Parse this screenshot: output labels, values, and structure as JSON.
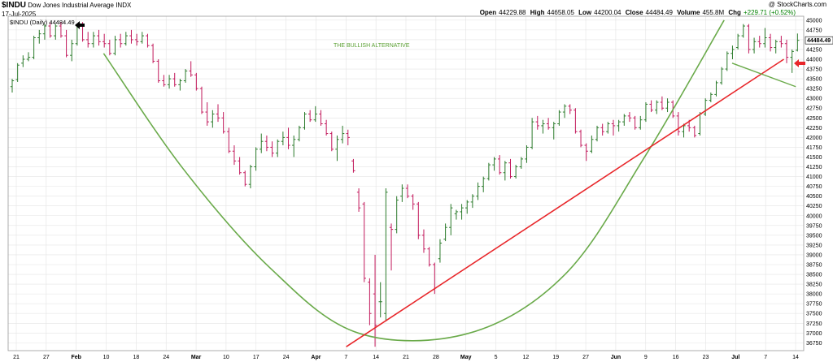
{
  "header": {
    "symbol": "$INDU",
    "name": "Dow Jones Industrial Average",
    "exchange": "INDX",
    "date": "17-Jul-2025",
    "credit": "@ StockCharts.com",
    "open_label": "Open",
    "open": "44229.88",
    "high_label": "High",
    "high": "44658.05",
    "low_label": "Low",
    "low": "44200.04",
    "close_label": "Close",
    "close": "44484.49",
    "volume_label": "Volume",
    "volume": "455.8M",
    "chg_label": "Chg",
    "chg": "+229.71 (+0.52%)"
  },
  "legend": {
    "text": "$INDU (Daily) 44484.49",
    "last_price_tag": "44484.49"
  },
  "colors": {
    "up_bar": "#2a7a2a",
    "down_bar": "#c2185b",
    "cup_curve": "#6aaa4a",
    "trend_line": "#e8262a",
    "annotation": "#5aa032",
    "arrow_black": "#000000",
    "arrow_red": "#e8262a",
    "grid": "#e4e4e4"
  },
  "chart_data": {
    "type": "ohlc",
    "title": "$INDU (Daily) 44484.49",
    "annotation": "THE BULLISH ALTERNATIVE",
    "yticks": [
      36750,
      37000,
      37250,
      37500,
      37750,
      38000,
      38250,
      38500,
      38750,
      39000,
      39250,
      39500,
      39750,
      40000,
      40250,
      40500,
      40750,
      41000,
      41250,
      41500,
      41750,
      42000,
      42250,
      42500,
      42750,
      43000,
      43250,
      43500,
      43750,
      44000,
      44250,
      44500,
      44750,
      45000
    ],
    "ylim": [
      36550,
      45100
    ],
    "xticks": [
      "21",
      "27",
      "Feb",
      "10",
      "18",
      "24",
      "Mar",
      "10",
      "17",
      "24",
      "Apr",
      "7",
      "14",
      "21",
      "28",
      "May",
      "5",
      "12",
      "19",
      "27",
      "Jun",
      "9",
      "16",
      "23",
      "Jul",
      "7",
      "14"
    ],
    "month_ticks": [
      "Feb",
      "Mar",
      "Apr",
      "May",
      "Jun",
      "Jul"
    ],
    "grid": true,
    "bars": [
      {
        "o": 43300,
        "h": 43500,
        "l": 43150,
        "c": 43450
      },
      {
        "o": 43480,
        "h": 43900,
        "l": 43420,
        "c": 43850
      },
      {
        "o": 43900,
        "h": 44100,
        "l": 43800,
        "c": 44000
      },
      {
        "o": 44000,
        "h": 44180,
        "l": 43950,
        "c": 44050
      },
      {
        "o": 44050,
        "h": 44600,
        "l": 44000,
        "c": 44550
      },
      {
        "o": 44550,
        "h": 44750,
        "l": 44400,
        "c": 44650
      },
      {
        "o": 44650,
        "h": 44900,
        "l": 44500,
        "c": 44850
      },
      {
        "o": 44850,
        "h": 44950,
        "l": 44550,
        "c": 44600
      },
      {
        "o": 44600,
        "h": 44900,
        "l": 44500,
        "c": 44850
      },
      {
        "o": 44850,
        "h": 44950,
        "l": 44550,
        "c": 44600
      },
      {
        "o": 44600,
        "h": 44750,
        "l": 44050,
        "c": 44100
      },
      {
        "o": 44100,
        "h": 44500,
        "l": 43950,
        "c": 44400
      },
      {
        "o": 44400,
        "h": 44900,
        "l": 44350,
        "c": 44850
      },
      {
        "o": 44850,
        "h": 44950,
        "l": 44450,
        "c": 44500
      },
      {
        "o": 44500,
        "h": 44700,
        "l": 44300,
        "c": 44400
      },
      {
        "o": 44400,
        "h": 44700,
        "l": 44300,
        "c": 44600
      },
      {
        "o": 44600,
        "h": 44750,
        "l": 44350,
        "c": 44450
      },
      {
        "o": 44450,
        "h": 44650,
        "l": 44300,
        "c": 44400
      },
      {
        "o": 44400,
        "h": 44500,
        "l": 44100,
        "c": 44150
      },
      {
        "o": 44150,
        "h": 44600,
        "l": 44100,
        "c": 44500
      },
      {
        "o": 44500,
        "h": 44650,
        "l": 44300,
        "c": 44400
      },
      {
        "o": 44400,
        "h": 44700,
        "l": 44350,
        "c": 44600
      },
      {
        "o": 44600,
        "h": 44750,
        "l": 44400,
        "c": 44500
      },
      {
        "o": 44500,
        "h": 44650,
        "l": 44350,
        "c": 44450
      },
      {
        "o": 44450,
        "h": 44700,
        "l": 44400,
        "c": 44600
      },
      {
        "o": 44600,
        "h": 44650,
        "l": 44300,
        "c": 44350
      },
      {
        "o": 44350,
        "h": 44400,
        "l": 43900,
        "c": 43950
      },
      {
        "o": 43950,
        "h": 44000,
        "l": 43400,
        "c": 43450
      },
      {
        "o": 43450,
        "h": 43600,
        "l": 43300,
        "c": 43350
      },
      {
        "o": 43350,
        "h": 43600,
        "l": 43250,
        "c": 43500
      },
      {
        "o": 43500,
        "h": 43650,
        "l": 43300,
        "c": 43350
      },
      {
        "o": 43350,
        "h": 43500,
        "l": 43200,
        "c": 43450
      },
      {
        "o": 43450,
        "h": 43750,
        "l": 43400,
        "c": 43700
      },
      {
        "o": 43700,
        "h": 43950,
        "l": 43550,
        "c": 43600
      },
      {
        "o": 43600,
        "h": 43650,
        "l": 43200,
        "c": 43250
      },
      {
        "o": 43250,
        "h": 43300,
        "l": 42600,
        "c": 42650
      },
      {
        "o": 42650,
        "h": 42900,
        "l": 42300,
        "c": 42400
      },
      {
        "o": 42400,
        "h": 42700,
        "l": 42250,
        "c": 42600
      },
      {
        "o": 42600,
        "h": 42850,
        "l": 42400,
        "c": 42500
      },
      {
        "o": 42500,
        "h": 42650,
        "l": 42100,
        "c": 42150
      },
      {
        "o": 42150,
        "h": 42250,
        "l": 41600,
        "c": 41650
      },
      {
        "o": 41650,
        "h": 41800,
        "l": 41300,
        "c": 41400
      },
      {
        "o": 41400,
        "h": 41500,
        "l": 41050,
        "c": 41100
      },
      {
        "o": 41100,
        "h": 41150,
        "l": 40750,
        "c": 40800
      },
      {
        "o": 40800,
        "h": 41300,
        "l": 40700,
        "c": 41250
      },
      {
        "o": 41250,
        "h": 41750,
        "l": 41150,
        "c": 41700
      },
      {
        "o": 41700,
        "h": 42100,
        "l": 41600,
        "c": 41900
      },
      {
        "o": 41900,
        "h": 42050,
        "l": 41650,
        "c": 41750
      },
      {
        "o": 41750,
        "h": 41900,
        "l": 41500,
        "c": 41600
      },
      {
        "o": 41600,
        "h": 41950,
        "l": 41500,
        "c": 41900
      },
      {
        "o": 41900,
        "h": 42150,
        "l": 41800,
        "c": 42000
      },
      {
        "o": 42000,
        "h": 42250,
        "l": 41700,
        "c": 41800
      },
      {
        "o": 41800,
        "h": 42050,
        "l": 41500,
        "c": 41950
      },
      {
        "o": 41950,
        "h": 42300,
        "l": 41900,
        "c": 42250
      },
      {
        "o": 42250,
        "h": 42650,
        "l": 42200,
        "c": 42600
      },
      {
        "o": 42600,
        "h": 42700,
        "l": 42400,
        "c": 42450
      },
      {
        "o": 42450,
        "h": 42800,
        "l": 42400,
        "c": 42600
      },
      {
        "o": 42600,
        "h": 42700,
        "l": 42300,
        "c": 42350
      },
      {
        "o": 42350,
        "h": 42450,
        "l": 42050,
        "c": 42100
      },
      {
        "o": 42100,
        "h": 42150,
        "l": 41650,
        "c": 41700
      },
      {
        "o": 41700,
        "h": 42050,
        "l": 41400,
        "c": 41950
      },
      {
        "o": 41950,
        "h": 42300,
        "l": 41850,
        "c": 42100
      },
      {
        "o": 42100,
        "h": 42200,
        "l": 41800,
        "c": 42000
      },
      {
        "o": 41400,
        "h": 41450,
        "l": 41100,
        "c": 41150
      },
      {
        "o": 40600,
        "h": 40700,
        "l": 40100,
        "c": 40200
      },
      {
        "o": 40300,
        "h": 40350,
        "l": 38300,
        "c": 38400
      },
      {
        "o": 38300,
        "h": 38400,
        "l": 37200,
        "c": 37500
      },
      {
        "o": 38000,
        "h": 39000,
        "l": 36650,
        "c": 37200
      },
      {
        "o": 37800,
        "h": 38300,
        "l": 37400,
        "c": 37800
      },
      {
        "o": 37500,
        "h": 40700,
        "l": 37300,
        "c": 40600
      },
      {
        "o": 39700,
        "h": 39800,
        "l": 38600,
        "c": 39650
      },
      {
        "o": 39650,
        "h": 40500,
        "l": 39550,
        "c": 40400
      },
      {
        "o": 40500,
        "h": 40800,
        "l": 40350,
        "c": 40700
      },
      {
        "o": 40700,
        "h": 40800,
        "l": 40450,
        "c": 40500
      },
      {
        "o": 40500,
        "h": 40550,
        "l": 40150,
        "c": 40300
      },
      {
        "o": 40300,
        "h": 40350,
        "l": 39400,
        "c": 39500
      },
      {
        "o": 39500,
        "h": 39650,
        "l": 39050,
        "c": 39150
      },
      {
        "o": 39150,
        "h": 39200,
        "l": 38700,
        "c": 38750
      },
      {
        "o": 38750,
        "h": 38800,
        "l": 38000,
        "c": 38150
      },
      {
        "o": 38900,
        "h": 39400,
        "l": 38800,
        "c": 39300
      },
      {
        "o": 39400,
        "h": 39800,
        "l": 39350,
        "c": 39700
      },
      {
        "o": 39700,
        "h": 40300,
        "l": 39500,
        "c": 40200
      },
      {
        "o": 40050,
        "h": 40150,
        "l": 39900,
        "c": 40100
      },
      {
        "o": 40100,
        "h": 40300,
        "l": 39900,
        "c": 40200
      },
      {
        "o": 40200,
        "h": 40400,
        "l": 40050,
        "c": 40350
      },
      {
        "o": 40350,
        "h": 40550,
        "l": 40200,
        "c": 40500
      },
      {
        "o": 40500,
        "h": 40850,
        "l": 40400,
        "c": 40750
      },
      {
        "o": 40750,
        "h": 41000,
        "l": 40600,
        "c": 40950
      },
      {
        "o": 40950,
        "h": 41350,
        "l": 40900,
        "c": 41300
      },
      {
        "o": 41300,
        "h": 41500,
        "l": 41150,
        "c": 41450
      },
      {
        "o": 41450,
        "h": 41550,
        "l": 41050,
        "c": 41100
      },
      {
        "o": 41100,
        "h": 41400,
        "l": 40900,
        "c": 41350
      },
      {
        "o": 41350,
        "h": 41450,
        "l": 40950,
        "c": 41000
      },
      {
        "o": 41000,
        "h": 41300,
        "l": 40950,
        "c": 41250
      },
      {
        "o": 41250,
        "h": 41500,
        "l": 41200,
        "c": 41450
      },
      {
        "o": 41450,
        "h": 41800,
        "l": 41350,
        "c": 41750
      },
      {
        "o": 41750,
        "h": 42500,
        "l": 41700,
        "c": 42400
      },
      {
        "o": 42400,
        "h": 42550,
        "l": 42200,
        "c": 42300
      },
      {
        "o": 42300,
        "h": 42450,
        "l": 42100,
        "c": 42350
      },
      {
        "o": 42350,
        "h": 42500,
        "l": 42200,
        "c": 42250
      },
      {
        "o": 42250,
        "h": 42400,
        "l": 41950,
        "c": 42350
      },
      {
        "o": 42350,
        "h": 42700,
        "l": 42300,
        "c": 42650
      },
      {
        "o": 42650,
        "h": 42850,
        "l": 42500,
        "c": 42800
      },
      {
        "o": 42800,
        "h": 42850,
        "l": 42600,
        "c": 42700
      },
      {
        "o": 42700,
        "h": 42750,
        "l": 42100,
        "c": 42150
      },
      {
        "o": 42150,
        "h": 42200,
        "l": 41750,
        "c": 41800
      },
      {
        "o": 41800,
        "h": 41850,
        "l": 41400,
        "c": 41650
      },
      {
        "o": 41650,
        "h": 42050,
        "l": 41600,
        "c": 41950
      },
      {
        "o": 41950,
        "h": 42300,
        "l": 41900,
        "c": 42250
      },
      {
        "o": 42250,
        "h": 42350,
        "l": 42050,
        "c": 42150
      },
      {
        "o": 42150,
        "h": 42400,
        "l": 42100,
        "c": 42350
      },
      {
        "o": 42350,
        "h": 42450,
        "l": 42050,
        "c": 42300
      },
      {
        "o": 42300,
        "h": 42450,
        "l": 42150,
        "c": 42400
      },
      {
        "o": 42400,
        "h": 42600,
        "l": 42300,
        "c": 42550
      },
      {
        "o": 42550,
        "h": 42650,
        "l": 42400,
        "c": 42500
      },
      {
        "o": 42500,
        "h": 42550,
        "l": 42200,
        "c": 42250
      },
      {
        "o": 42250,
        "h": 42550,
        "l": 42200,
        "c": 42450
      },
      {
        "o": 42450,
        "h": 42900,
        "l": 42400,
        "c": 42850
      },
      {
        "o": 42850,
        "h": 42950,
        "l": 42650,
        "c": 42700
      },
      {
        "o": 42700,
        "h": 42950,
        "l": 42600,
        "c": 42900
      },
      {
        "o": 42900,
        "h": 43050,
        "l": 42700,
        "c": 42750
      },
      {
        "o": 42750,
        "h": 43000,
        "l": 42650,
        "c": 42900
      },
      {
        "o": 42900,
        "h": 42950,
        "l": 42500,
        "c": 42550
      },
      {
        "o": 42550,
        "h": 42650,
        "l": 42050,
        "c": 42150
      },
      {
        "o": 42150,
        "h": 42350,
        "l": 42000,
        "c": 42300
      },
      {
        "o": 42300,
        "h": 42450,
        "l": 42150,
        "c": 42250
      },
      {
        "o": 42250,
        "h": 42300,
        "l": 42000,
        "c": 42050
      },
      {
        "o": 42100,
        "h": 42650,
        "l": 42050,
        "c": 42600
      },
      {
        "o": 42600,
        "h": 43000,
        "l": 42550,
        "c": 42950
      },
      {
        "o": 42950,
        "h": 43150,
        "l": 42900,
        "c": 43100
      },
      {
        "o": 43100,
        "h": 43450,
        "l": 43050,
        "c": 43400
      },
      {
        "o": 43400,
        "h": 43800,
        "l": 43350,
        "c": 43750
      },
      {
        "o": 43750,
        "h": 44200,
        "l": 43700,
        "c": 44150
      },
      {
        "o": 44150,
        "h": 44350,
        "l": 44000,
        "c": 44250
      },
      {
        "o": 44300,
        "h": 44650,
        "l": 44250,
        "c": 44600
      },
      {
        "o": 44600,
        "h": 44900,
        "l": 44550,
        "c": 44850
      },
      {
        "o": 44850,
        "h": 44900,
        "l": 44150,
        "c": 44250
      },
      {
        "o": 44250,
        "h": 44550,
        "l": 44150,
        "c": 44450
      },
      {
        "o": 44450,
        "h": 44600,
        "l": 44300,
        "c": 44400
      },
      {
        "o": 44400,
        "h": 44800,
        "l": 44300,
        "c": 44550
      },
      {
        "o": 44550,
        "h": 44650,
        "l": 44200,
        "c": 44300
      },
      {
        "o": 44300,
        "h": 44500,
        "l": 44150,
        "c": 44450
      },
      {
        "o": 44450,
        "h": 44600,
        "l": 44300,
        "c": 44400
      },
      {
        "o": 44400,
        "h": 44500,
        "l": 43900,
        "c": 44050
      },
      {
        "o": 44050,
        "h": 44250,
        "l": 43650,
        "c": 44200
      },
      {
        "o": 44230,
        "h": 44658,
        "l": 44200,
        "c": 44484
      }
    ],
    "bullish_curve": [
      [
        0.12,
        44150
      ],
      [
        0.22,
        41200
      ],
      [
        0.33,
        38650
      ],
      [
        0.44,
        37000
      ],
      [
        0.58,
        37000
      ],
      [
        0.7,
        38500
      ],
      [
        0.8,
        41500
      ],
      [
        0.9,
        45000
      ]
    ],
    "trend_line": [
      [
        0.425,
        36650
      ],
      [
        0.975,
        44000
      ]
    ],
    "short_line": [
      [
        0.91,
        43900
      ],
      [
        0.99,
        43300
      ]
    ]
  }
}
